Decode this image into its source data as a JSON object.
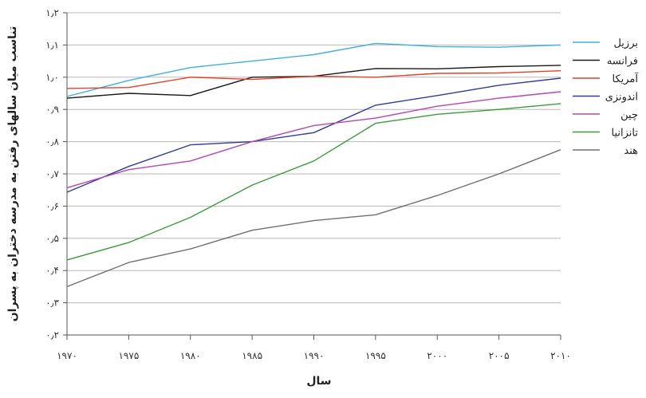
{
  "chart_data": {
    "type": "line",
    "title": "",
    "xlabel": "سال",
    "ylabel": "تناسب میان سالهای رفتن به مدرسه دختران به پسران",
    "x": [
      1970,
      1975,
      1980,
      1985,
      1990,
      1995,
      2000,
      2005,
      2010
    ],
    "x_tick_labels": [
      "۱۹۷۰",
      "۱۹۷۵",
      "۱۹۸۰",
      "۱۹۸۵",
      "۱۹۹۰",
      "۱۹۹۵",
      "۲۰۰۰",
      "۲۰۰۵",
      "۲۰۱۰"
    ],
    "y_ticks": [
      0.2,
      0.3,
      0.4,
      0.5,
      0.6,
      0.7,
      0.8,
      0.9,
      1.0,
      1.1,
      1.2
    ],
    "y_tick_labels": [
      "۰٫۲",
      "۰٫۳",
      "۰٫۴",
      "۰٫۵",
      "۰٫۶",
      "۰٫۷",
      "۰٫۸",
      "۰٫۹",
      "۱٫۰",
      "۱٫۱",
      "۱٫۲"
    ],
    "xlim": [
      1970,
      2010
    ],
    "ylim": [
      0.2,
      1.2
    ],
    "grid": "horizontal",
    "legend_position": "right",
    "series": [
      {
        "name": "برزیل",
        "color": "#3fb0e0",
        "values": [
          0.94,
          0.99,
          1.03,
          1.05,
          1.07,
          1.105,
          1.095,
          1.093,
          1.1
        ]
      },
      {
        "name": "فرانسه",
        "color": "#1a1a1a",
        "values": [
          0.935,
          0.95,
          0.943,
          1.0,
          1.003,
          1.027,
          1.026,
          1.033,
          1.037
        ]
      },
      {
        "name": "آمریکا",
        "color": "#e2442a",
        "values": [
          0.965,
          0.968,
          1.0,
          0.993,
          1.003,
          1.0,
          1.012,
          1.013,
          1.02
        ]
      },
      {
        "name": "اندونزی",
        "color": "#2e3d9a",
        "values": [
          0.643,
          0.723,
          0.79,
          0.8,
          0.828,
          0.913,
          0.943,
          0.975,
          0.997
        ]
      },
      {
        "name": "چین",
        "color": "#b646b8",
        "values": [
          0.657,
          0.713,
          0.74,
          0.8,
          0.85,
          0.873,
          0.91,
          0.935,
          0.955
        ]
      },
      {
        "name": "تانزانیا",
        "color": "#3a9d3a",
        "values": [
          0.433,
          0.487,
          0.565,
          0.665,
          0.74,
          0.857,
          0.885,
          0.9,
          0.918
        ]
      },
      {
        "name": "هند",
        "color": "#707070",
        "values": [
          0.35,
          0.425,
          0.467,
          0.525,
          0.555,
          0.573,
          0.633,
          0.7,
          0.775
        ]
      }
    ]
  }
}
